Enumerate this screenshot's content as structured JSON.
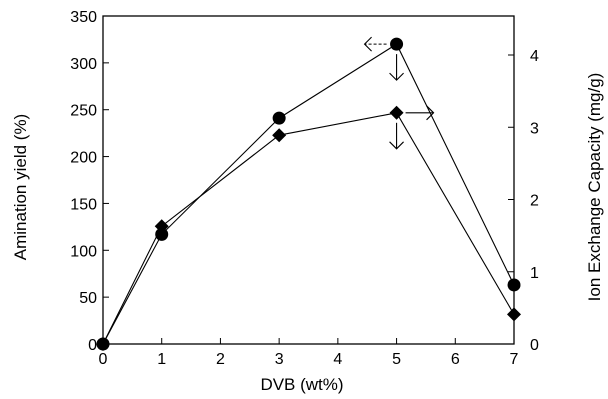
{
  "chart_data": {
    "type": "line",
    "xlabel": "DVB (wt%)",
    "ylabel_left": "Amination yield (%)",
    "ylabel_right": "Ion Exchange Capacity (mg/g)",
    "xlim": [
      0,
      7
    ],
    "ylim_left": [
      0,
      350
    ],
    "ylim_right": [
      0,
      4.54
    ],
    "grid": false,
    "x_ticks": [
      "0",
      "1",
      "2",
      "3",
      "4",
      "5",
      "6",
      "7"
    ],
    "y_left_ticks": [
      "0",
      "50",
      "100",
      "150",
      "200",
      "250",
      "300",
      "350"
    ],
    "y_right_ticks": [
      "0",
      "1",
      "2",
      "3",
      "4"
    ],
    "series": [
      {
        "marker": "circle",
        "axis": "left",
        "x": [
          0,
          1,
          3,
          5,
          7
        ],
        "values": [
          0,
          117,
          241,
          320,
          63
        ]
      },
      {
        "marker": "diamond",
        "axis": "right",
        "x": [
          0,
          1,
          3,
          5,
          7
        ],
        "values": [
          0,
          1.63,
          2.89,
          3.2,
          0.41
        ]
      }
    ],
    "annotations": [
      {
        "shape": "dashed-arrow-left",
        "axis_ref": "left",
        "at_x": 5,
        "at_y": 320
      },
      {
        "shape": "arrow-down",
        "axis_ref": "left",
        "at_x": 5,
        "at_y": 320
      },
      {
        "shape": "arrow-right",
        "axis_ref": "right",
        "at_x": 5,
        "at_y": 3.2
      },
      {
        "shape": "arrow-down",
        "axis_ref": "right",
        "at_x": 5,
        "at_y": 3.2
      }
    ]
  }
}
